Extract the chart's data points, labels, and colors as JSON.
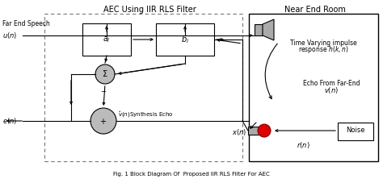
{
  "title": "AEC Using IIR RLS Filter",
  "near_end_title": "Near End Room",
  "far_end_label": "Far End Speech",
  "caption": "Fig. 1 Block Diagram Of  Proposed IIR RLS Filter For AEC",
  "bg_color": "#ffffff",
  "box_color": "#000000",
  "dashed_color": "#777777",
  "fill_gray": "#aaaaaa",
  "red_color": "#dd0000",
  "text_color": "#000000",
  "arrow_color": "#000000",
  "sigma_gray": "#bbbbbb",
  "ellipse_gray": "#bbbbbb"
}
